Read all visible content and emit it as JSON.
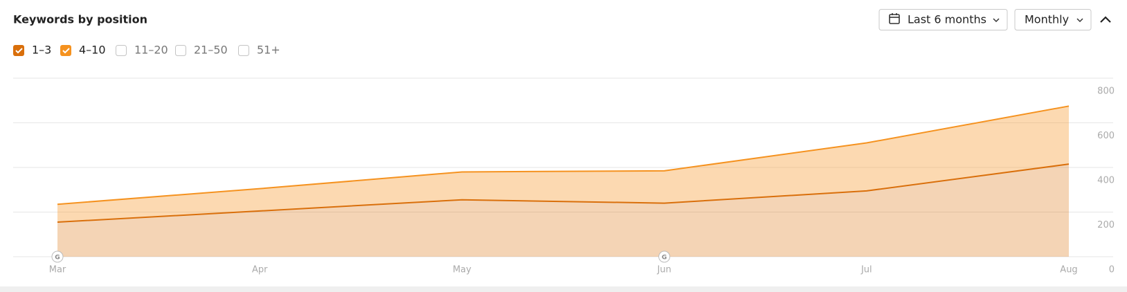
{
  "header": {
    "title": "Keywords by position",
    "date_range": "Last 6 months",
    "granularity": "Monthly"
  },
  "chart_data": {
    "type": "stacked-area",
    "categories": [
      "Mar",
      "Apr",
      "May",
      "Jun",
      "Jul",
      "Aug"
    ],
    "series": [
      {
        "name": "1–3",
        "color": "#d96f0b",
        "values": [
          155,
          205,
          255,
          240,
          295,
          415
        ]
      },
      {
        "name": "4–10",
        "color": "#f5921f",
        "values": [
          80,
          100,
          125,
          145,
          215,
          260
        ]
      }
    ],
    "hidden_series": [
      "11–20",
      "21–50",
      "51+"
    ],
    "annotations": [
      {
        "at": "Mar",
        "label": "G"
      },
      {
        "at": "Jun",
        "label": "G"
      }
    ],
    "ylim": [
      0,
      800
    ],
    "yticks": [
      0,
      200,
      400,
      600,
      800
    ],
    "grid": true
  }
}
